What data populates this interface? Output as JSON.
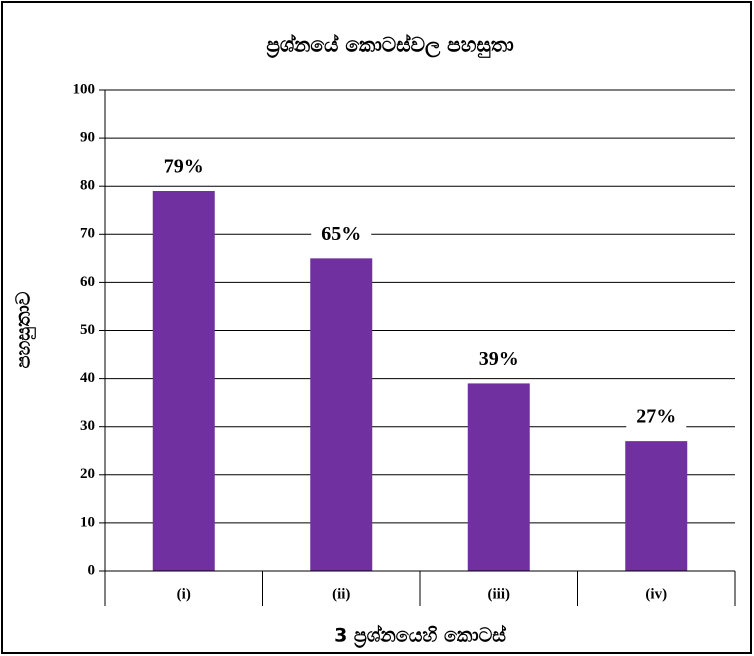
{
  "chart_data": {
    "type": "bar",
    "title": "ප්‍රශ්නයේ කොටස්වල පහසුතා",
    "x_label": "3 ප්‍රශ්නයෙහි කොටස්",
    "y_label": "පහසුතාව",
    "categories": [
      "(i)",
      "(ii)",
      "(iii)",
      "(iv)"
    ],
    "values": [
      79,
      65,
      39,
      27
    ],
    "value_labels": [
      "79%",
      "65%",
      "39%",
      "27%"
    ],
    "color": "#7030a0",
    "ylim": [
      0,
      100
    ],
    "yticks": [
      0,
      10,
      20,
      30,
      40,
      50,
      60,
      70,
      80,
      90,
      100
    ],
    "grid": true
  }
}
